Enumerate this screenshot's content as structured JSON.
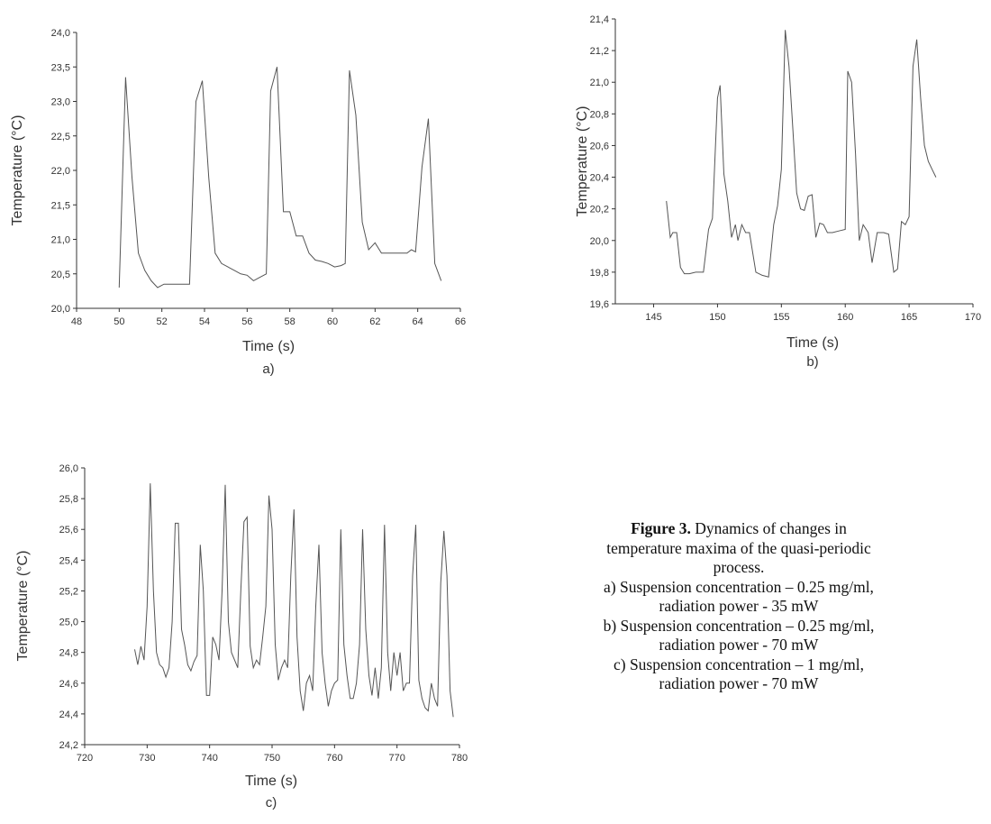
{
  "chart_data": [
    {
      "type": "line",
      "panel_label": "a)",
      "xlabel": "Time (s)",
      "ylabel": "Temperature (°C)",
      "xlim": [
        48,
        66
      ],
      "ylim": [
        20.0,
        24.0
      ],
      "xticks": [
        "48",
        "50",
        "52",
        "54",
        "56",
        "58",
        "60",
        "62",
        "64",
        "66"
      ],
      "yticks": [
        "20,0",
        "20,5",
        "21,0",
        "21,5",
        "22,0",
        "22,5",
        "23,0",
        "23,5",
        "24,0"
      ],
      "grid": false,
      "series": [
        {
          "x": [
            50.0,
            50.3,
            50.6,
            50.9,
            51.2,
            51.5,
            51.8,
            52.1,
            52.5,
            53.0,
            53.3,
            53.6,
            53.9,
            54.2,
            54.5,
            54.8,
            55.1,
            55.4,
            55.7,
            56.0,
            56.3,
            56.6,
            56.9,
            57.1,
            57.4,
            57.7,
            58.0,
            58.3,
            58.6,
            58.9,
            59.2,
            59.5,
            59.8,
            60.1,
            60.4,
            60.6,
            60.8,
            61.1,
            61.4,
            61.7,
            62.0,
            62.3,
            62.6,
            62.9,
            63.2,
            63.5,
            63.7,
            63.9,
            64.2,
            64.5,
            64.8,
            65.1
          ],
          "y": [
            20.3,
            23.35,
            21.9,
            20.8,
            20.55,
            20.4,
            20.3,
            20.35,
            20.35,
            20.35,
            20.35,
            23.0,
            23.3,
            21.9,
            20.8,
            20.65,
            20.6,
            20.55,
            20.5,
            20.48,
            20.4,
            20.45,
            20.5,
            23.15,
            23.5,
            21.4,
            21.4,
            21.05,
            21.05,
            20.8,
            20.7,
            20.68,
            20.65,
            20.6,
            20.62,
            20.65,
            23.45,
            22.8,
            21.25,
            20.85,
            20.95,
            20.8,
            20.8,
            20.8,
            20.8,
            20.8,
            20.85,
            20.82,
            22.05,
            22.75,
            20.65,
            20.4
          ]
        }
      ]
    },
    {
      "type": "line",
      "panel_label": "b)",
      "xlabel": "Time (s)",
      "ylabel": "Temperature (°C)",
      "xlim": [
        142,
        170
      ],
      "ylim": [
        19.6,
        21.4
      ],
      "xticks": [
        "145",
        "150",
        "155",
        "160",
        "165",
        "170"
      ],
      "yticks": [
        "19,6",
        "19,8",
        "20,0",
        "20,2",
        "20,4",
        "20,6",
        "20,8",
        "21,0",
        "21,2",
        "21,4"
      ],
      "grid": false,
      "series": [
        {
          "x": [
            146.0,
            146.3,
            146.5,
            146.8,
            147.1,
            147.4,
            147.8,
            148.3,
            148.9,
            149.3,
            149.6,
            150.0,
            150.2,
            150.5,
            150.8,
            151.1,
            151.4,
            151.6,
            151.9,
            152.2,
            152.5,
            153.0,
            153.5,
            154.0,
            154.4,
            154.7,
            155.0,
            155.3,
            155.6,
            155.9,
            156.2,
            156.5,
            156.8,
            157.1,
            157.4,
            157.7,
            158.0,
            158.3,
            158.6,
            159.0,
            159.5,
            160.0,
            160.2,
            160.5,
            160.8,
            161.1,
            161.4,
            161.8,
            162.1,
            162.5,
            163.0,
            163.4,
            163.8,
            164.1,
            164.4,
            164.7,
            165.0,
            165.3,
            165.6,
            165.9,
            166.2,
            166.5,
            166.8,
            167.1
          ],
          "y": [
            20.25,
            20.02,
            20.05,
            20.05,
            19.83,
            19.79,
            19.79,
            19.8,
            19.8,
            20.07,
            20.14,
            20.9,
            20.98,
            20.42,
            20.25,
            20.02,
            20.1,
            20.0,
            20.1,
            20.05,
            20.05,
            19.8,
            19.78,
            19.77,
            20.1,
            20.22,
            20.45,
            21.33,
            21.1,
            20.7,
            20.3,
            20.2,
            20.19,
            20.28,
            20.29,
            20.02,
            20.11,
            20.1,
            20.05,
            20.05,
            20.06,
            20.07,
            21.07,
            21.0,
            20.55,
            20.0,
            20.1,
            20.05,
            19.86,
            20.05,
            20.05,
            20.04,
            19.8,
            19.82,
            20.12,
            20.1,
            20.15,
            21.1,
            21.27,
            20.9,
            20.6,
            20.5,
            20.45,
            20.4
          ]
        }
      ]
    },
    {
      "type": "line",
      "panel_label": "c)",
      "xlabel": "Time (s)",
      "ylabel": "Temperature (°C)",
      "xlim": [
        720,
        780
      ],
      "ylim": [
        24.2,
        26.0
      ],
      "xticks": [
        "720",
        "730",
        "740",
        "750",
        "760",
        "770",
        "780"
      ],
      "yticks": [
        "24,2",
        "24,4",
        "24,6",
        "24,8",
        "25,0",
        "25,2",
        "25,4",
        "25,6",
        "25,8",
        "26,0"
      ],
      "grid": false,
      "series": [
        {
          "x": [
            728.0,
            728.5,
            729.0,
            729.5,
            730.0,
            730.5,
            731.0,
            731.5,
            732.0,
            732.5,
            733.0,
            733.5,
            734.0,
            734.5,
            735.0,
            735.5,
            736.0,
            736.5,
            737.0,
            737.5,
            738.0,
            738.5,
            739.0,
            739.5,
            740.0,
            740.5,
            741.0,
            741.5,
            742.0,
            742.5,
            743.0,
            743.5,
            744.0,
            744.5,
            745.0,
            745.5,
            746.0,
            746.5,
            747.0,
            747.5,
            748.0,
            748.5,
            749.0,
            749.5,
            750.0,
            750.5,
            751.0,
            751.5,
            752.0,
            752.5,
            753.0,
            753.5,
            754.0,
            754.5,
            755.0,
            755.5,
            756.0,
            756.5,
            757.0,
            757.5,
            758.0,
            758.5,
            759.0,
            759.5,
            760.0,
            760.5,
            761.0,
            761.5,
            762.0,
            762.5,
            763.0,
            763.5,
            764.0,
            764.5,
            765.0,
            765.5,
            766.0,
            766.5,
            767.0,
            767.5,
            768.0,
            768.5,
            769.0,
            769.5,
            770.0,
            770.5,
            771.0,
            771.5,
            772.0,
            772.5,
            773.0,
            773.5,
            774.0,
            774.5,
            775.0,
            775.5,
            776.0,
            776.5,
            777.0,
            777.5,
            778.0,
            778.5,
            779.0
          ],
          "y": [
            24.82,
            24.72,
            24.84,
            24.75,
            25.1,
            25.9,
            25.2,
            24.8,
            24.72,
            24.7,
            24.64,
            24.7,
            25.0,
            25.64,
            25.64,
            24.95,
            24.85,
            24.72,
            24.68,
            24.74,
            24.78,
            25.5,
            25.2,
            24.52,
            24.52,
            24.9,
            24.85,
            24.75,
            25.2,
            25.89,
            25.0,
            24.8,
            24.75,
            24.7,
            25.2,
            25.65,
            25.68,
            24.84,
            24.7,
            24.75,
            24.72,
            24.9,
            25.1,
            25.82,
            25.6,
            24.85,
            24.62,
            24.7,
            24.75,
            24.7,
            25.3,
            25.73,
            24.9,
            24.55,
            24.42,
            24.6,
            24.65,
            24.55,
            25.1,
            25.5,
            24.8,
            24.6,
            24.45,
            24.55,
            24.6,
            24.62,
            25.6,
            24.85,
            24.65,
            24.5,
            24.5,
            24.6,
            24.85,
            25.6,
            24.95,
            24.65,
            24.52,
            24.7,
            24.5,
            24.7,
            25.63,
            24.8,
            24.55,
            24.8,
            24.65,
            24.8,
            24.55,
            24.6,
            24.6,
            25.3,
            25.63,
            24.62,
            24.5,
            24.44,
            24.42,
            24.6,
            24.5,
            24.45,
            25.25,
            25.59,
            25.3,
            24.55,
            24.38
          ]
        }
      ]
    }
  ],
  "caption": {
    "figure_label": "Figure 3.",
    "lines": [
      " Dynamics of changes in",
      "temperature maxima of the quasi-periodic",
      "process.",
      "a) Suspension concentration – 0.25 mg/ml,",
      "radiation power - 35 mW",
      "b) Suspension concentration – 0.25 mg/ml,",
      "radiation power - 70 mW",
      "c) Suspension concentration – 1 mg/ml,",
      "radiation power - 70 mW"
    ]
  }
}
